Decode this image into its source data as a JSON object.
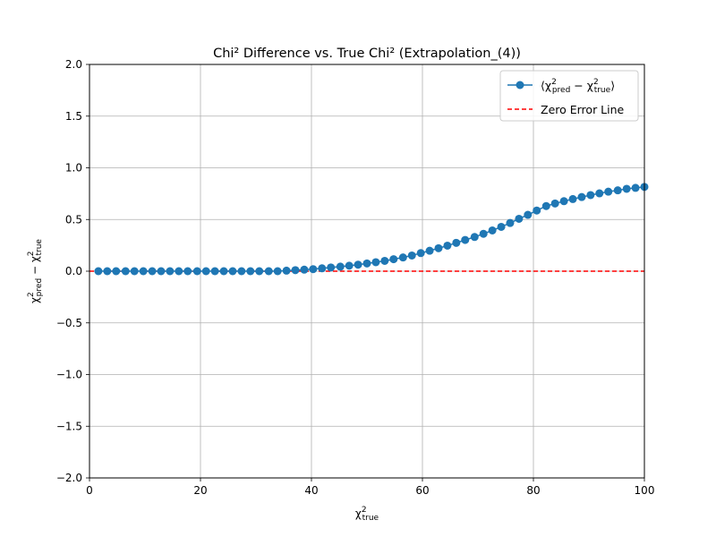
{
  "chart_data": {
    "type": "line",
    "title": "Chi² Difference vs. True Chi² (Extrapolation_(4))",
    "xlabel": "χ²_true",
    "ylabel": "χ²_pred − χ²_true",
    "xlim": [
      0,
      100
    ],
    "ylim": [
      -2,
      2
    ],
    "xticks": [
      0,
      20,
      40,
      60,
      80,
      100
    ],
    "yticks": [
      -2.0,
      -1.5,
      -1.0,
      -0.5,
      0.0,
      0.5,
      1.0,
      1.5,
      2.0
    ],
    "xtick_labels": [
      "0",
      "20",
      "40",
      "60",
      "80",
      "100"
    ],
    "ytick_labels": [
      "−2.0",
      "−1.5",
      "−1.0",
      "−0.5",
      "0.0",
      "0.5",
      "1.0",
      "1.5",
      "2.0"
    ],
    "grid": true,
    "legend_position": "top-right",
    "series": [
      {
        "name": "⟨χ²_pred − χ²_true⟩",
        "style": "line-with-markers",
        "color": "#1f77b4",
        "x": [
          1.6,
          3.2,
          4.8,
          6.5,
          8.1,
          9.7,
          11.3,
          12.9,
          14.5,
          16.1,
          17.7,
          19.4,
          21.0,
          22.6,
          24.2,
          25.8,
          27.4,
          29.0,
          30.6,
          32.3,
          33.9,
          35.5,
          37.1,
          38.7,
          40.3,
          41.9,
          43.5,
          45.2,
          46.8,
          48.4,
          50.0,
          51.6,
          53.2,
          54.8,
          56.5,
          58.1,
          59.7,
          61.3,
          62.9,
          64.5,
          66.1,
          67.7,
          69.4,
          71.0,
          72.6,
          74.2,
          75.8,
          77.4,
          79.0,
          80.6,
          82.3,
          83.9,
          85.5,
          87.1,
          88.7,
          90.3,
          91.9,
          93.5,
          95.2,
          96.8,
          98.4,
          100.0
        ],
        "y": [
          0.0,
          0.0,
          0.0,
          0.0,
          0.0,
          0.0,
          0.0,
          0.0,
          0.0,
          0.0,
          0.0,
          0.0,
          0.0,
          0.0,
          0.0,
          0.0,
          0.0,
          0.0,
          0.0,
          0.0,
          0.0,
          0.005,
          0.01,
          0.015,
          0.02,
          0.028,
          0.036,
          0.044,
          0.053,
          0.063,
          0.075,
          0.087,
          0.1,
          0.116,
          0.133,
          0.152,
          0.175,
          0.198,
          0.222,
          0.247,
          0.274,
          0.302,
          0.331,
          0.362,
          0.394,
          0.429,
          0.466,
          0.507,
          0.545,
          0.587,
          0.63,
          0.655,
          0.677,
          0.698,
          0.717,
          0.736,
          0.753,
          0.769,
          0.782,
          0.797,
          0.806,
          0.815
        ]
      },
      {
        "name": "Zero Error Line",
        "style": "dashed",
        "color": "#ff0000",
        "x": [
          0,
          100
        ],
        "y": [
          0,
          0
        ]
      }
    ]
  }
}
